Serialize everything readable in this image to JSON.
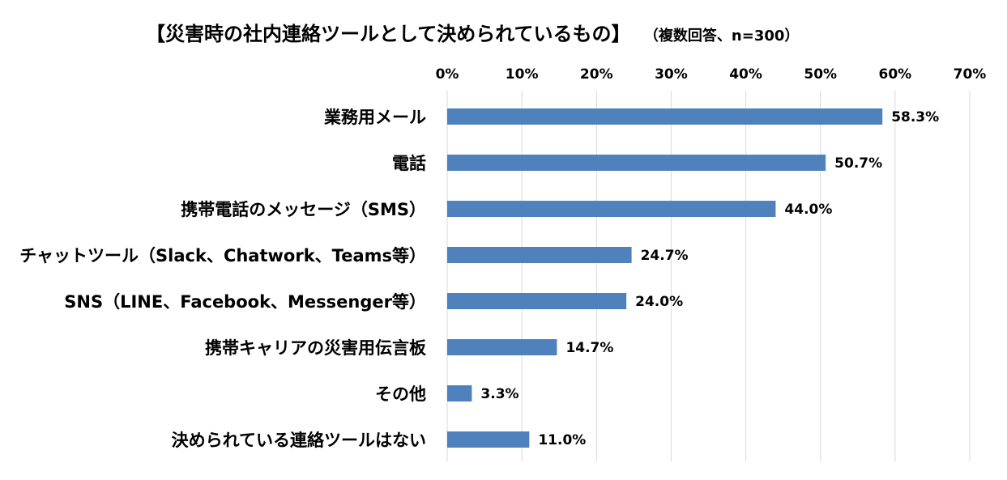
{
  "chart_data": {
    "type": "bar",
    "orientation": "horizontal",
    "title": "【災害時の社内連絡ツールとして決められているもの】",
    "subtitle": "（複数回答、n=300）",
    "categories": [
      "業務用メール",
      "電話",
      "携帯電話のメッセージ（SMS）",
      "チャットツール（Slack、Chatwork、Teams等）",
      "SNS（LINE、Facebook、Messenger等）",
      "携帯キャリアの災害用伝言板",
      "その他",
      "決められている連絡ツールはない"
    ],
    "values": [
      58.3,
      50.7,
      44.0,
      24.7,
      24.0,
      14.7,
      3.3,
      11.0
    ],
    "data_labels": [
      "58.3%",
      "50.7%",
      "44.0%",
      "24.7%",
      "24.0%",
      "14.7%",
      "3.3%",
      "11.0%"
    ],
    "xlim": [
      0,
      70
    ],
    "x_ticks": [
      0,
      10,
      20,
      30,
      40,
      50,
      60,
      70
    ],
    "x_tick_labels": [
      "0%",
      "10%",
      "20%",
      "30%",
      "40%",
      "50%",
      "60%",
      "70%"
    ],
    "x_axis_position": "top",
    "grid": true,
    "legend": "none",
    "bar_color": "#4f81bd",
    "gridline_color": "#d9d9d9"
  }
}
